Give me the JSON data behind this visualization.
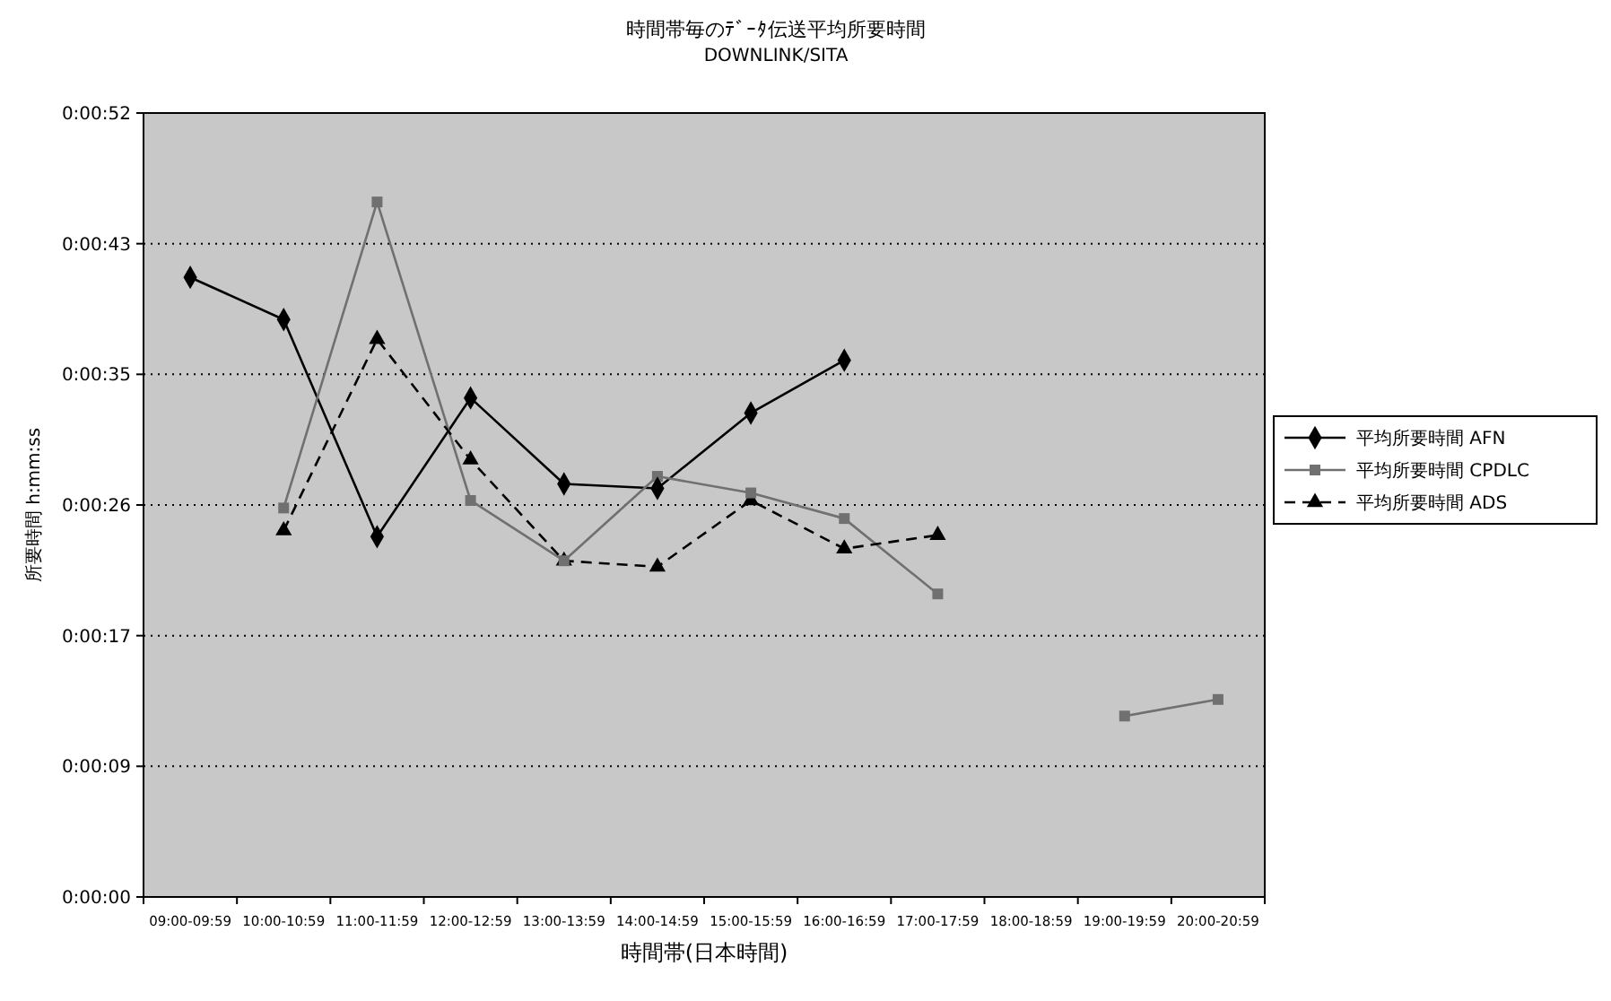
{
  "chart_data": {
    "type": "line",
    "title": "時間帯毎のﾃﾞｰﾀ伝送平均所要時間",
    "subtitle": "DOWNLINK/SITA",
    "xlabel": "時間帯(日本時間)",
    "ylabel": "所要時間 h:mm:ss",
    "categories": [
      "09:00-09:59",
      "10:00-10:59",
      "11:00-11:59",
      "12:00-12:59",
      "13:00-13:59",
      "14:00-14:59",
      "15:00-15:59",
      "16:00-16:59",
      "17:00-17:59",
      "18:00-18:59",
      "19:00-19:59",
      "20:00-20:59"
    ],
    "ylim": [
      0,
      52
    ],
    "yticks": [
      {
        "value": 0,
        "label": "0:00:00"
      },
      {
        "value": 8.667,
        "label": "0:00:09"
      },
      {
        "value": 17.333,
        "label": "0:00:17"
      },
      {
        "value": 26,
        "label": "0:00:26"
      },
      {
        "value": 34.667,
        "label": "0:00:35"
      },
      {
        "value": 43.333,
        "label": "0:00:43"
      },
      {
        "value": 52,
        "label": "0:00:52"
      }
    ],
    "grid": "y",
    "legend": "right",
    "series": [
      {
        "name": "平均所要時間 AFN",
        "color": "#000000",
        "marker": "diamond",
        "line_style": "solid",
        "values": [
          41.1,
          38.3,
          23.9,
          33.1,
          27.4,
          27.1,
          32.1,
          35.6,
          null,
          null,
          null,
          null
        ]
      },
      {
        "name": "平均所要時間 CPDLC",
        "color": "#707070",
        "marker": "square",
        "line_style": "solid",
        "values": [
          null,
          25.8,
          46.1,
          26.3,
          22.3,
          27.9,
          26.8,
          25.1,
          20.1,
          null,
          12.0,
          13.1
        ]
      },
      {
        "name": "平均所要時間 ADS",
        "color": "#000000",
        "marker": "triangle",
        "line_style": "dashed",
        "values": [
          null,
          24.3,
          37.0,
          29.0,
          22.3,
          21.9,
          26.3,
          23.1,
          24.0,
          null,
          null,
          null
        ]
      }
    ]
  }
}
